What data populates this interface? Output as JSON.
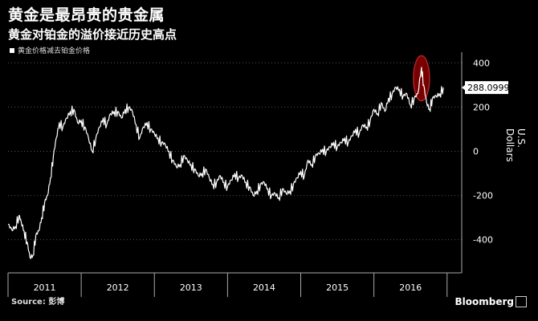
{
  "chart_data": {
    "type": "line",
    "title": "黄金是最昂贵的贵金属",
    "subtitle": "黄金对铂金的溢价接近历史高点",
    "legend": "黄金价格减去铂金价格",
    "ylabel": "U.S. Dollars",
    "ylim": [
      -550,
      430
    ],
    "y_ticks": [
      "400",
      "200",
      "0",
      "-200",
      "-400"
    ],
    "y_tick_values": [
      400,
      200,
      0,
      -200,
      -400
    ],
    "x_tick_labels": [
      "2011",
      "2012",
      "2013",
      "2014",
      "2015",
      "2016"
    ],
    "x_range": [
      2010.5,
      2016.7
    ],
    "last_value_label": "288.0999",
    "grid": "horizontal dotted",
    "highlight": "2016",
    "series": [
      {
        "values": [
          [
            2010.5,
            -330
          ],
          [
            2010.55,
            -355
          ],
          [
            2010.6,
            -340
          ],
          [
            2010.65,
            -290
          ],
          [
            2010.68,
            -320
          ],
          [
            2010.72,
            -360
          ],
          [
            2010.76,
            -410
          ],
          [
            2010.8,
            -480
          ],
          [
            2010.84,
            -470
          ],
          [
            2010.88,
            -380
          ],
          [
            2010.92,
            -360
          ],
          [
            2010.96,
            -300
          ],
          [
            2011.0,
            -230
          ],
          [
            2011.04,
            -200
          ],
          [
            2011.08,
            -120
          ],
          [
            2011.12,
            -20
          ],
          [
            2011.16,
            60
          ],
          [
            2011.2,
            130
          ],
          [
            2011.25,
            110
          ],
          [
            2011.3,
            150
          ],
          [
            2011.35,
            180
          ],
          [
            2011.4,
            190
          ],
          [
            2011.45,
            130
          ],
          [
            2011.5,
            140
          ],
          [
            2011.55,
            110
          ],
          [
            2011.6,
            60
          ],
          [
            2011.65,
            0
          ],
          [
            2011.7,
            60
          ],
          [
            2011.75,
            110
          ],
          [
            2011.8,
            150
          ],
          [
            2011.85,
            120
          ],
          [
            2011.9,
            170
          ],
          [
            2011.95,
            180
          ],
          [
            2012.0,
            180
          ],
          [
            2012.05,
            150
          ],
          [
            2012.1,
            190
          ],
          [
            2012.15,
            200
          ],
          [
            2012.2,
            180
          ],
          [
            2012.25,
            120
          ],
          [
            2012.3,
            60
          ],
          [
            2012.35,
            110
          ],
          [
            2012.4,
            130
          ],
          [
            2012.45,
            100
          ],
          [
            2012.5,
            80
          ],
          [
            2012.55,
            60
          ],
          [
            2012.6,
            40
          ],
          [
            2012.65,
            30
          ],
          [
            2012.7,
            0
          ],
          [
            2012.75,
            -40
          ],
          [
            2012.8,
            -70
          ],
          [
            2012.85,
            -60
          ],
          [
            2012.9,
            -20
          ],
          [
            2012.95,
            -40
          ],
          [
            2013.0,
            -60
          ],
          [
            2013.05,
            -80
          ],
          [
            2013.1,
            -110
          ],
          [
            2013.15,
            -100
          ],
          [
            2013.2,
            -80
          ],
          [
            2013.25,
            -120
          ],
          [
            2013.3,
            -150
          ],
          [
            2013.35,
            -140
          ],
          [
            2013.4,
            -110
          ],
          [
            2013.45,
            -140
          ],
          [
            2013.5,
            -160
          ],
          [
            2013.55,
            -130
          ],
          [
            2013.6,
            -100
          ],
          [
            2013.65,
            -120
          ],
          [
            2013.7,
            -110
          ],
          [
            2013.75,
            -140
          ],
          [
            2013.8,
            -160
          ],
          [
            2013.85,
            -200
          ],
          [
            2013.9,
            -180
          ],
          [
            2013.95,
            -150
          ],
          [
            2014.0,
            -140
          ],
          [
            2014.05,
            -170
          ],
          [
            2014.1,
            -200
          ],
          [
            2014.15,
            -190
          ],
          [
            2014.2,
            -210
          ],
          [
            2014.25,
            -170
          ],
          [
            2014.3,
            -190
          ],
          [
            2014.35,
            -180
          ],
          [
            2014.4,
            -150
          ],
          [
            2014.45,
            -120
          ],
          [
            2014.5,
            -90
          ],
          [
            2014.55,
            -110
          ],
          [
            2014.6,
            -40
          ],
          [
            2014.65,
            -60
          ],
          [
            2014.7,
            -20
          ],
          [
            2014.75,
            -10
          ],
          [
            2014.8,
            10
          ],
          [
            2014.85,
            0
          ],
          [
            2014.9,
            20
          ],
          [
            2014.95,
            40
          ],
          [
            2015.0,
            20
          ],
          [
            2015.05,
            40
          ],
          [
            2015.1,
            60
          ],
          [
            2015.15,
            40
          ],
          [
            2015.2,
            70
          ],
          [
            2015.25,
            100
          ],
          [
            2015.3,
            80
          ],
          [
            2015.35,
            120
          ],
          [
            2015.4,
            110
          ],
          [
            2015.45,
            140
          ],
          [
            2015.5,
            190
          ],
          [
            2015.55,
            170
          ],
          [
            2015.6,
            220
          ],
          [
            2015.65,
            180
          ],
          [
            2015.7,
            240
          ],
          [
            2015.75,
            260
          ],
          [
            2015.8,
            290
          ],
          [
            2015.85,
            280
          ],
          [
            2015.9,
            250
          ],
          [
            2015.95,
            260
          ],
          [
            2016.0,
            210
          ],
          [
            2016.05,
            240
          ],
          [
            2016.1,
            260
          ],
          [
            2016.15,
            380
          ],
          [
            2016.18,
            300
          ],
          [
            2016.22,
            220
          ],
          [
            2016.26,
            190
          ],
          [
            2016.3,
            240
          ],
          [
            2016.35,
            250
          ],
          [
            2016.4,
            260
          ],
          [
            2016.45,
            288
          ]
        ]
      }
    ]
  },
  "footer": {
    "source": "Source: 彭博",
    "brand": "Bloomberg"
  },
  "colors": {
    "background": "#000000",
    "line": "#ffffff",
    "highlight": "#8b0000"
  }
}
